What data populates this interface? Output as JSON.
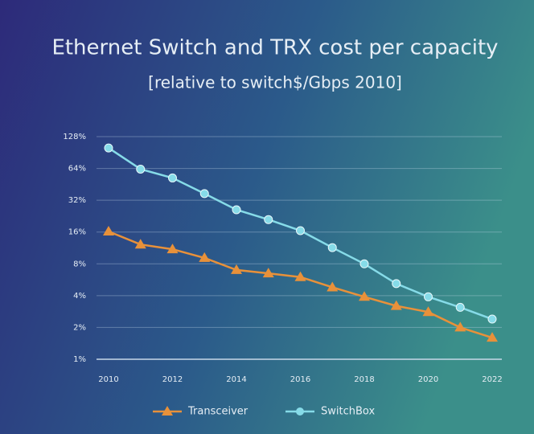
{
  "chart_data": {
    "type": "line",
    "title": "Ethernet Switch and TRX cost per capacity",
    "subtitle": "[relative to switch$/Gbps 2010]",
    "x": [
      2010,
      2011,
      2012,
      2013,
      2014,
      2015,
      2016,
      2017,
      2018,
      2019,
      2020,
      2021,
      2022
    ],
    "series": [
      {
        "name": "Transceiver",
        "color": "#e8913a",
        "marker": "triangle",
        "values": [
          16.2,
          12.2,
          11,
          9.1,
          7,
          6.5,
          6,
          4.8,
          3.9,
          3.2,
          2.8,
          2,
          1.6
        ]
      },
      {
        "name": "SwitchBox",
        "color": "#86dbe8",
        "marker": "circle",
        "values": [
          100,
          63,
          52,
          37,
          26,
          21,
          16.5,
          11.4,
          8,
          5.2,
          3.9,
          3.1,
          2.4
        ]
      }
    ],
    "xlim": [
      2010,
      2022
    ],
    "xticks": [
      2010,
      2012,
      2014,
      2016,
      2018,
      2020,
      2022
    ],
    "ylim": [
      1,
      128
    ],
    "yticks": [
      {
        "value": 1,
        "label": "1%"
      },
      {
        "value": 2,
        "label": "2%"
      },
      {
        "value": 4,
        "label": "4%"
      },
      {
        "value": 8,
        "label": "8%"
      },
      {
        "value": 16,
        "label": "16%"
      },
      {
        "value": 32,
        "label": "32%"
      },
      {
        "value": 64,
        "label": "64%"
      },
      {
        "value": 128,
        "label": "128%"
      }
    ],
    "log_scale": true,
    "grid": true,
    "legend": "bottom"
  }
}
